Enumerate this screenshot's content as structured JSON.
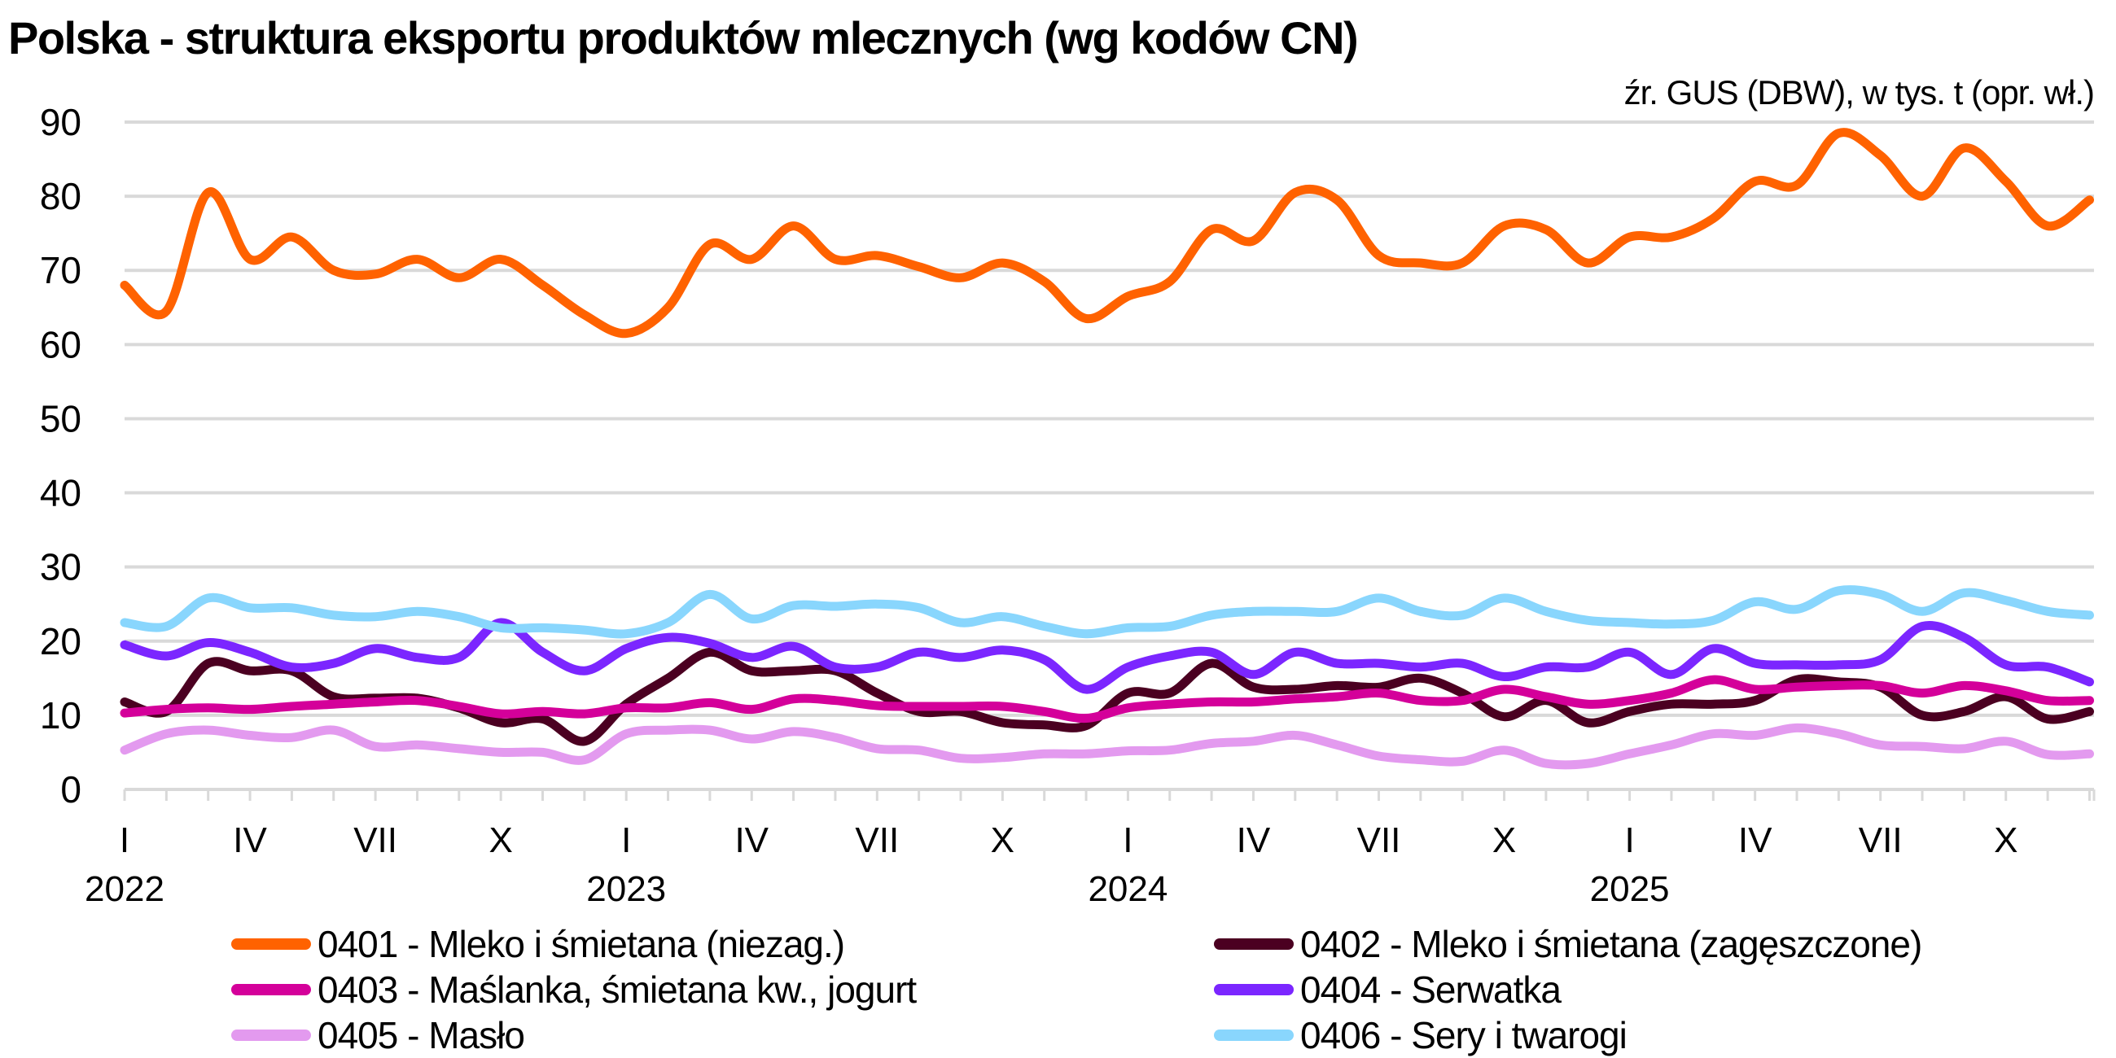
{
  "chart_data": {
    "type": "line",
    "title": "Polska - struktura eksportu produktów mlecznych (wg kodów CN)",
    "subtitle": "źr. GUS (DBW), w tys. t (opr. wł.)",
    "xlabel": "",
    "ylabel": "",
    "ylim": [
      0,
      90
    ],
    "yticks": [
      0,
      10,
      20,
      30,
      40,
      50,
      60,
      70,
      80,
      90
    ],
    "grid": true,
    "legend_position": "bottom",
    "x_start": "2022-01",
    "x_end": "2025-12",
    "frequency": "monthly",
    "month_tick_labels": [
      "I",
      "IV",
      "VII",
      "X"
    ],
    "year_labels": [
      "2022",
      "2023",
      "2024",
      "2025"
    ],
    "series": [
      {
        "name": "0401 - Mleko i śmietana (niezag.)",
        "color": "#FF6200",
        "values": [
          68,
          64.5,
          80.5,
          71.5,
          74.5,
          70,
          69.5,
          71.5,
          69,
          71.5,
          68,
          64,
          61.5,
          65,
          73.5,
          71.5,
          76,
          71.5,
          72,
          70.5,
          69,
          71,
          68.5,
          63.5,
          66.5,
          68.5,
          75.5,
          74,
          80.5,
          79.5,
          72,
          71,
          71,
          76,
          75.5,
          71,
          74.5,
          74.5,
          77,
          82,
          81.5,
          88.5,
          85.5,
          80,
          86.5,
          82,
          76,
          79.5
        ]
      },
      {
        "name": "0402 - Mleko i śmietana (zagęszczone)",
        "color": "#4B0021",
        "values": [
          11.8,
          10.5,
          17,
          16,
          16,
          12.5,
          12.3,
          12.3,
          11,
          9,
          9.5,
          6.5,
          11.5,
          15,
          18.5,
          16,
          16,
          16,
          13,
          10.5,
          10.5,
          9,
          8.7,
          8.6,
          13,
          13,
          17,
          13.8,
          13.5,
          14,
          13.8,
          15,
          13,
          9.8,
          12,
          9,
          10.5,
          11.5,
          11.5,
          12,
          14.8,
          14.5,
          13.8,
          10,
          10.5,
          12.5,
          9.5,
          10.5
        ]
      },
      {
        "name": "0403 - Maślanka, śmietana kw., jogurt",
        "color": "#D4009A",
        "values": [
          10.3,
          10.8,
          11,
          10.8,
          11.2,
          11.5,
          11.8,
          12,
          11.2,
          10.2,
          10.5,
          10.2,
          11,
          11,
          11.7,
          10.8,
          12.2,
          12,
          11.3,
          11.2,
          11.2,
          11.2,
          10.5,
          9.6,
          11,
          11.5,
          11.8,
          11.8,
          12.2,
          12.5,
          13,
          12,
          12,
          13.5,
          12.5,
          11.5,
          12,
          13,
          14.8,
          13.5,
          13.8,
          14,
          14,
          13,
          14,
          13.3,
          12,
          12
        ]
      },
      {
        "name": "0404 - Serwatka",
        "color": "#7B26FF",
        "values": [
          19.5,
          18,
          19.8,
          18.5,
          16.5,
          17,
          19,
          17.8,
          17.8,
          22.5,
          18.5,
          16,
          19,
          20.5,
          19.7,
          17.8,
          19.3,
          16.5,
          16.5,
          18.5,
          17.8,
          18.8,
          17.5,
          13.5,
          16.5,
          18,
          18.5,
          15.5,
          18.5,
          17,
          17,
          16.5,
          17,
          15.2,
          16.5,
          16.5,
          18.5,
          15.5,
          19,
          17,
          16.8,
          16.8,
          17.5,
          22,
          20.5,
          16.8,
          16.5,
          14.5
        ]
      },
      {
        "name": "0405 - Masło",
        "color": "#E39AEF",
        "values": [
          5.3,
          7.5,
          8,
          7.3,
          7,
          8,
          5.8,
          6,
          5.5,
          5,
          5,
          4,
          7.5,
          8,
          8,
          6.8,
          7.8,
          7,
          5.5,
          5.3,
          4.2,
          4.3,
          4.8,
          4.8,
          5.2,
          5.3,
          6.2,
          6.5,
          7.3,
          6,
          4.5,
          4,
          3.8,
          5.3,
          3.5,
          3.5,
          4.8,
          6,
          7.5,
          7.3,
          8.3,
          7.5,
          6,
          5.8,
          5.5,
          6.5,
          4.7,
          4.8
        ]
      },
      {
        "name": "0406 - Sery i twarogi",
        "color": "#89D6FD",
        "values": [
          22.5,
          22,
          25.8,
          24.5,
          24.5,
          23.5,
          23.3,
          24,
          23.3,
          21.8,
          21.8,
          21.5,
          21,
          22.5,
          26.3,
          23,
          24.8,
          24.7,
          25,
          24.5,
          22.5,
          23.3,
          22,
          21,
          21.8,
          22,
          23.5,
          24,
          24,
          24,
          25.8,
          24,
          23.5,
          25.8,
          24,
          22.8,
          22.5,
          22.3,
          22.8,
          25.3,
          24.3,
          26.8,
          26.3,
          24,
          26.5,
          25.5,
          24,
          23.5
        ]
      }
    ]
  }
}
